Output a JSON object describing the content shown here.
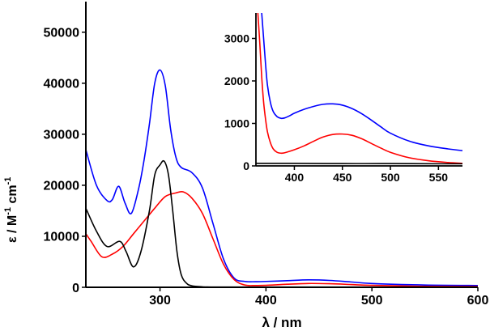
{
  "chart_data": [
    {
      "type": "line",
      "title": "",
      "xlabel": "λ / nm",
      "ylabel_parts": {
        "epsilon": "ε / M",
        "minus1": "-1",
        "cm": " cm",
        "minus1b": "-1"
      },
      "xlim": [
        230,
        600
      ],
      "ylim": [
        0,
        56000
      ],
      "xticks": [
        300,
        400,
        500,
        600
      ],
      "yticks": [
        0,
        10000,
        20000,
        30000,
        40000,
        50000
      ],
      "xtick_labels": [
        "300",
        "400",
        "500",
        "600"
      ],
      "ytick_labels": [
        "0",
        "10000",
        "20000",
        "30000",
        "40000",
        "50000"
      ],
      "series": [
        {
          "name": "blue",
          "color": "#0000ff",
          "x": [
            230,
            240,
            250,
            255,
            261,
            267,
            273,
            280,
            285,
            290,
            295,
            300,
            305,
            310,
            315,
            320,
            330,
            340,
            350,
            360,
            370,
            380,
            390,
            400,
            420,
            440,
            460,
            480,
            500,
            550,
            600
          ],
          "y": [
            27000,
            20000,
            17000,
            17200,
            19800,
            16500,
            14500,
            19500,
            25000,
            32000,
            40000,
            42600,
            39500,
            31000,
            25500,
            23500,
            22500,
            19500,
            12500,
            5500,
            1800,
            1150,
            1100,
            1150,
            1300,
            1450,
            1350,
            1050,
            750,
            450,
            350
          ]
        },
        {
          "name": "red",
          "color": "#ff0000",
          "x": [
            230,
            235,
            245,
            255,
            265,
            275,
            285,
            295,
            305,
            315,
            322,
            330,
            340,
            350,
            360,
            370,
            380,
            390,
            400,
            420,
            440,
            460,
            480,
            500,
            550,
            600
          ],
          "y": [
            10500,
            9000,
            6000,
            6500,
            8000,
            10500,
            13000,
            15500,
            17800,
            18500,
            18700,
            17500,
            14500,
            9500,
            4500,
            1500,
            450,
            350,
            380,
            600,
            750,
            700,
            550,
            380,
            200,
            150
          ]
        },
        {
          "name": "black",
          "color": "#000000",
          "x": [
            230,
            240,
            250,
            262,
            268,
            275,
            282,
            290,
            295,
            300,
            304,
            308,
            312,
            316,
            320,
            325,
            330,
            340,
            350,
            400,
            450,
            500,
            600
          ],
          "y": [
            15500,
            11000,
            8000,
            9000,
            7000,
            4000,
            7000,
            15000,
            22000,
            24000,
            24700,
            22000,
            15000,
            7000,
            2500,
            800,
            300,
            100,
            50,
            50,
            50,
            50,
            50
          ]
        }
      ]
    },
    {
      "type": "line",
      "title": "inset",
      "xlim": [
        360,
        575
      ],
      "ylim": [
        0,
        3600
      ],
      "xticks": [
        400,
        450,
        500,
        550
      ],
      "yticks": [
        0,
        1000,
        2000,
        3000
      ],
      "xtick_labels": [
        "400",
        "450",
        "500",
        "550"
      ],
      "ytick_labels": [
        "0",
        "1000",
        "2000",
        "3000"
      ],
      "series": [
        {
          "name": "blue",
          "color": "#0000ff",
          "x": [
            366,
            368,
            370,
            372,
            375,
            378,
            382,
            386,
            390,
            395,
            400,
            410,
            420,
            430,
            440,
            450,
            460,
            470,
            480,
            490,
            500,
            520,
            540,
            560,
            575
          ],
          "y": [
            3600,
            3000,
            2400,
            1900,
            1500,
            1280,
            1160,
            1120,
            1130,
            1180,
            1240,
            1330,
            1400,
            1450,
            1460,
            1430,
            1350,
            1230,
            1080,
            920,
            770,
            580,
            470,
            400,
            360
          ]
        },
        {
          "name": "red",
          "color": "#ff0000",
          "x": [
            362,
            364,
            366,
            368,
            370,
            372,
            375,
            378,
            382,
            386,
            390,
            400,
            410,
            420,
            430,
            440,
            450,
            460,
            470,
            480,
            490,
            500,
            520,
            540,
            560,
            575
          ],
          "y": [
            3600,
            2900,
            2100,
            1500,
            1100,
            800,
            550,
            400,
            320,
            300,
            310,
            380,
            470,
            580,
            680,
            740,
            750,
            720,
            640,
            530,
            420,
            320,
            190,
            120,
            80,
            60
          ]
        },
        {
          "name": "black",
          "color": "#000000",
          "x": [
            360,
            400,
            450,
            500,
            550,
            575
          ],
          "y": [
            60,
            60,
            55,
            55,
            50,
            50
          ]
        }
      ]
    }
  ]
}
